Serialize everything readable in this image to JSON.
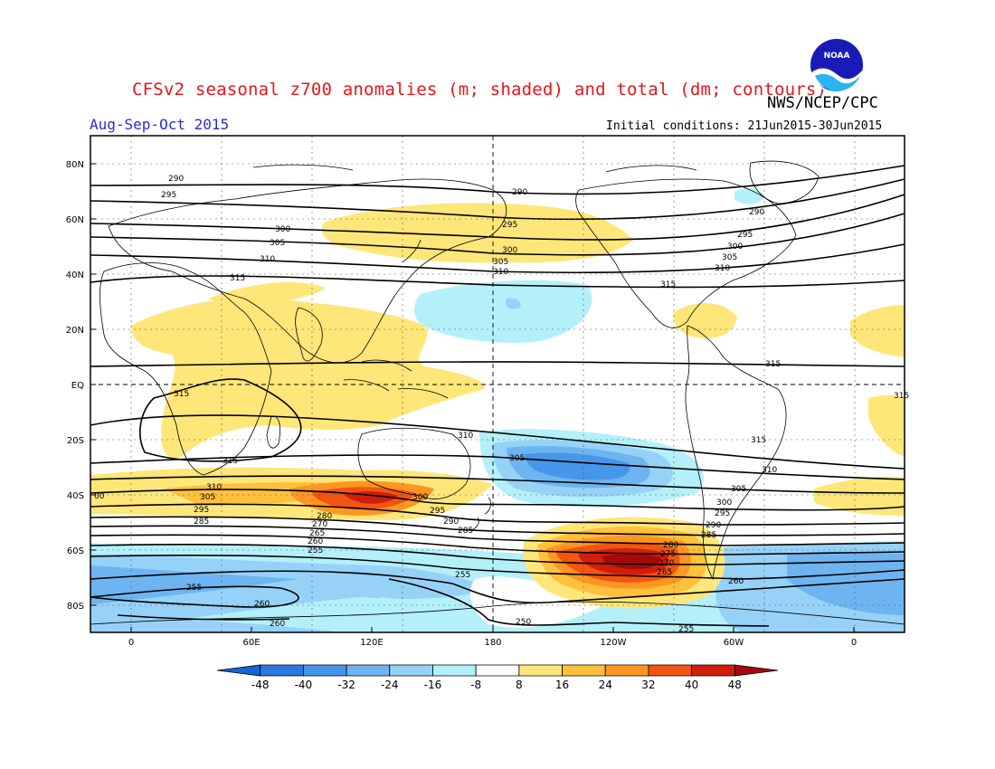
{
  "title": "CFSv2 seasonal z700 anomalies (m; shaded) and total (dm; contours)",
  "agency": "NWS/NCEP/CPC",
  "season": "Aug-Sep-Oct 2015",
  "initial_conditions": "Initial conditions: 21Jun2015-30Jun2015",
  "logo_text": "NOAA",
  "lat_labels": [
    "80N",
    "60N",
    "40N",
    "20N",
    "EQ",
    "20S",
    "40S",
    "60S",
    "80S"
  ],
  "lon_labels": [
    "0",
    "60E",
    "120E",
    "180",
    "120W",
    "60W",
    "0"
  ],
  "colorbar": {
    "labels": [
      "-48",
      "-40",
      "-32",
      "-24",
      "-16",
      "-8",
      "8",
      "16",
      "24",
      "32",
      "40",
      "48"
    ],
    "colors": [
      "#1464d2",
      "#2a78e0",
      "#4696ea",
      "#6eb4f0",
      "#96d2f8",
      "#b4f0fa",
      "#ffffff",
      "#ffe678",
      "#ffc03c",
      "#ff9622",
      "#f25510",
      "#d11e0c",
      "#a50a0a"
    ]
  },
  "contour_labels": {
    "north_290": "290",
    "north_295": "295",
    "north_300": "300",
    "north_305": "305",
    "north_310": "310",
    "north_315": "315",
    "tropic_315": "315",
    "south_310": "310",
    "south_305": "305",
    "south_300": "300",
    "south_295": "295",
    "south_290": "290",
    "south_285": "285",
    "south_280": "280",
    "south_275": "275",
    "south_270": "270",
    "south_265": "265",
    "south_260": "260",
    "south_255": "255",
    "south_250": "250",
    "edge_300": "00"
  }
}
